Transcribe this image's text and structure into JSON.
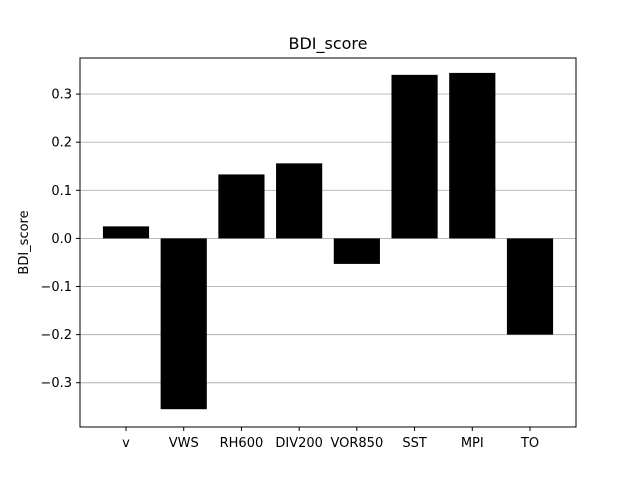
{
  "chart_data": {
    "type": "bar",
    "title": "BDI_score",
    "xlabel": "",
    "ylabel": "BDI_score",
    "categories": [
      "v",
      "VWS",
      "RH600",
      "DIV200",
      "VOR850",
      "SST",
      "MPI",
      "TO"
    ],
    "values": [
      0.025,
      -0.355,
      0.133,
      0.156,
      -0.053,
      0.34,
      0.344,
      -0.2
    ],
    "ylim": [
      -0.392,
      0.375
    ],
    "yticks": [
      -0.3,
      -0.2,
      -0.1,
      0.0,
      0.1,
      0.2,
      0.3
    ],
    "ytick_labels": [
      "−0.3",
      "−0.2",
      "−0.1",
      "0.0",
      "0.1",
      "0.2",
      "0.3"
    ],
    "grid": "y-major",
    "bar_color": "#000000",
    "grid_color": "#b0b0b0"
  }
}
